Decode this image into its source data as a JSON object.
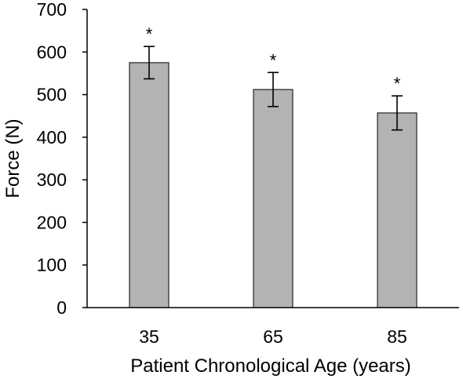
{
  "chart_data": {
    "type": "bar",
    "title": "",
    "xlabel": "Patient Chronological Age (years)",
    "ylabel": "Force (N)",
    "categories": [
      "35",
      "65",
      "85"
    ],
    "values": [
      575,
      512,
      457
    ],
    "error": [
      38,
      40,
      40
    ],
    "annotations": [
      "*",
      "*",
      "*"
    ],
    "ylim": [
      0,
      700
    ],
    "yticks": [
      0,
      100,
      200,
      300,
      400,
      500,
      600,
      700
    ],
    "grid": false,
    "legend": "none",
    "colors": {
      "bar_fill": "#b3b3b3",
      "bar_stroke": "#000000",
      "axis": "#000000",
      "text": "#000000"
    }
  }
}
